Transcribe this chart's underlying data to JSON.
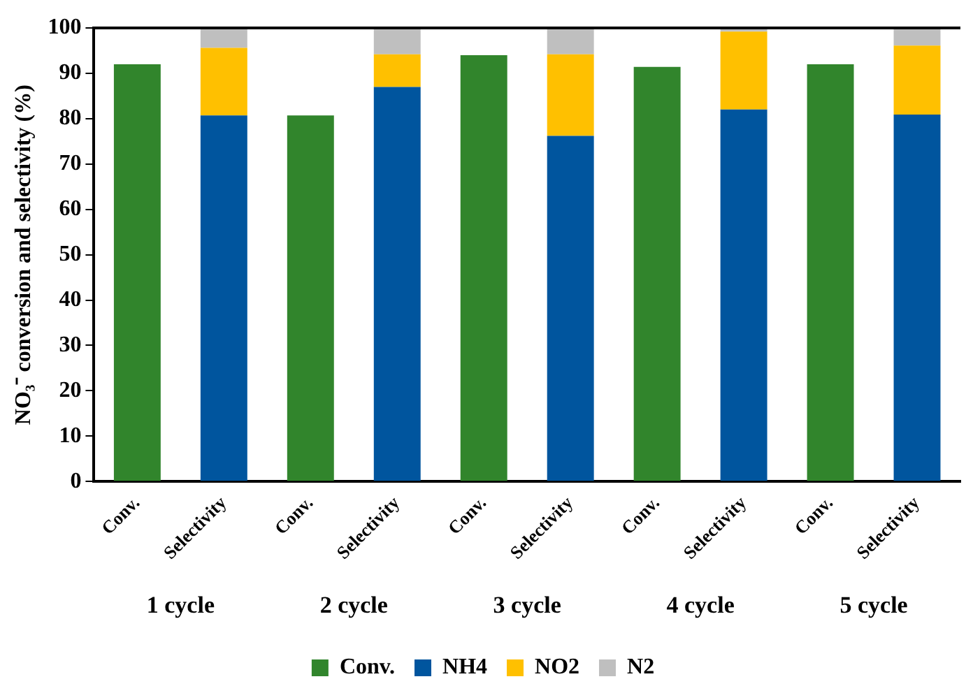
{
  "chart_data": {
    "type": "bar",
    "stacked": true,
    "ylabel": "NO₃⁻ conversion and selectivity (%)",
    "categories": [
      "Conv.",
      "Selectivity",
      "Conv.",
      "Selectivity",
      "Conv.",
      "Selectivity",
      "Conv.",
      "Selectivity",
      "Conv.",
      "Selectivity"
    ],
    "series": [
      {
        "name": "Conv.",
        "color": "#31852c",
        "values": [
          92.0,
          null,
          80.7,
          null,
          94.0,
          null,
          91.4,
          null,
          92.0,
          null
        ]
      },
      {
        "name": "NH4",
        "color": "#00559e",
        "values": [
          null,
          80.7,
          null,
          87.0,
          null,
          76.2,
          null,
          82.0,
          null,
          80.9
        ]
      },
      {
        "name": "NO2",
        "color": "#ffc000",
        "values": [
          null,
          14.9,
          null,
          7.2,
          null,
          18.0,
          null,
          17.2,
          null,
          15.2
        ]
      },
      {
        "name": "N2",
        "color": "#bfbfbf",
        "values": [
          null,
          4.4,
          null,
          5.8,
          null,
          5.8,
          null,
          0.8,
          null,
          3.9
        ]
      }
    ],
    "annotations": [
      "1 cycle",
      "2 cycle",
      "3 cycle",
      "4 cycle",
      "5 cycle"
    ],
    "ylim": [
      0,
      100
    ],
    "yticks": [
      0,
      10,
      20,
      30,
      40,
      50,
      60,
      70,
      80,
      90,
      100
    ],
    "grid": false,
    "legend": "bottom"
  }
}
